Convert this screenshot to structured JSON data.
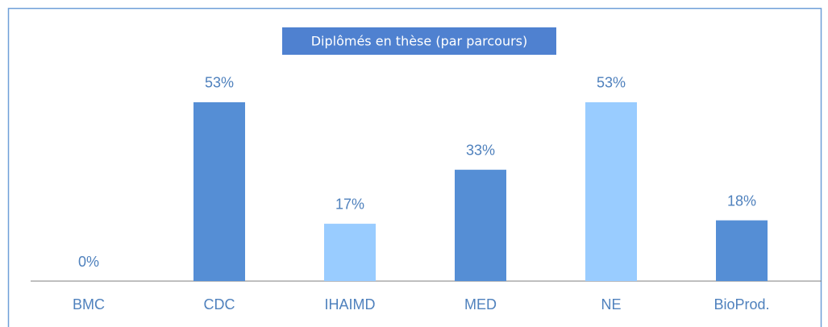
{
  "chart_data": {
    "type": "bar",
    "title": "Diplômés en thèse (par parcours)",
    "categories": [
      "BMC",
      "CDC",
      "IHAIMD",
      "MED",
      "NE",
      "BioProd."
    ],
    "values": [
      0,
      53,
      17,
      33,
      53,
      18
    ],
    "value_labels": [
      "0%",
      "53%",
      "17%",
      "33%",
      "53%",
      "18%"
    ],
    "colors": [
      "#558ed5",
      "#558ed5",
      "#99ccff",
      "#558ed5",
      "#99ccff",
      "#558ed5"
    ]
  }
}
